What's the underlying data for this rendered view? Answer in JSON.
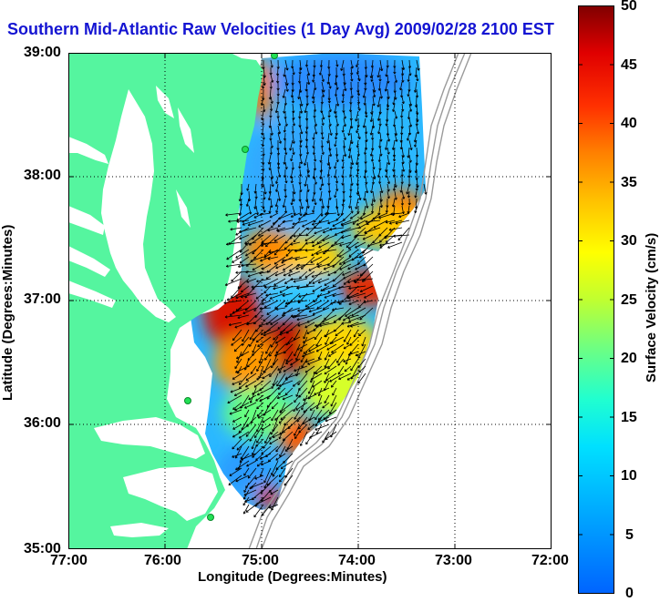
{
  "title": "Southern Mid-Atlantic Raw Velocities (1 Day Avg) 2009/02/28 2100 EST",
  "axes": {
    "xlabel": "Longitude (Degrees:Minutes)",
    "ylabel": "Latitude (Degrees:Minutes)",
    "x_ticks": [
      "77:00",
      "76:00",
      "75:00",
      "74:00",
      "73:00",
      "72:00"
    ],
    "y_ticks": [
      "39:00",
      "38:00",
      "37:00",
      "36:00",
      "35:00"
    ],
    "xlim": [
      -77,
      -72
    ],
    "ylim": [
      35,
      39
    ],
    "grid": "dotted"
  },
  "colorbar": {
    "label": "Surface Velocity (cm/s)",
    "ticks": [
      "50",
      "45",
      "40",
      "35",
      "30",
      "25",
      "20",
      "15",
      "10",
      "5",
      "0"
    ],
    "range": [
      0,
      50
    ],
    "colormap": "jet"
  },
  "colors": {
    "land": "#55f59f",
    "title": "#1414d2",
    "station": "#22e055",
    "isobath": "#9a9a9a"
  }
}
